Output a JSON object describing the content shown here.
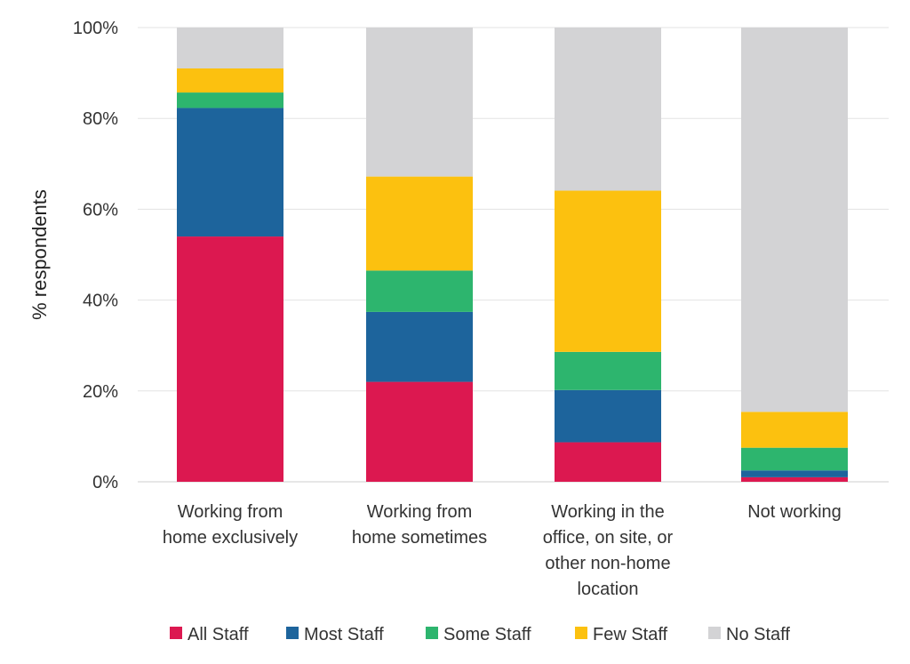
{
  "chart_data": {
    "type": "bar",
    "stacked": true,
    "title": "",
    "xlabel": "",
    "ylabel": "% respondents",
    "ylim": [
      0,
      100
    ],
    "yticks": [
      "0%",
      "20%",
      "40%",
      "60%",
      "80%",
      "100%"
    ],
    "grid": true,
    "legend_position": "bottom",
    "categories": [
      [
        "Working from",
        "home exclusively"
      ],
      [
        "Working from",
        "home sometimes"
      ],
      [
        "Working in the",
        "office, on site, or",
        "other non-home",
        "location"
      ],
      [
        "Not working"
      ]
    ],
    "series": [
      {
        "name": "All Staff",
        "color": "#dc1850",
        "values": [
          54.0,
          22.0,
          8.7,
          1.0
        ]
      },
      {
        "name": "Most Staff",
        "color": "#1d649c",
        "values": [
          28.3,
          15.4,
          11.5,
          1.5
        ]
      },
      {
        "name": "Some Staff",
        "color": "#2db56e",
        "values": [
          3.4,
          9.1,
          8.4,
          5.0
        ]
      },
      {
        "name": "Few Staff",
        "color": "#fcc10f",
        "values": [
          5.3,
          20.7,
          35.5,
          7.9
        ]
      },
      {
        "name": "No Staff",
        "color": "#d3d3d5",
        "values": [
          9.0,
          32.8,
          35.9,
          84.6
        ]
      }
    ]
  }
}
